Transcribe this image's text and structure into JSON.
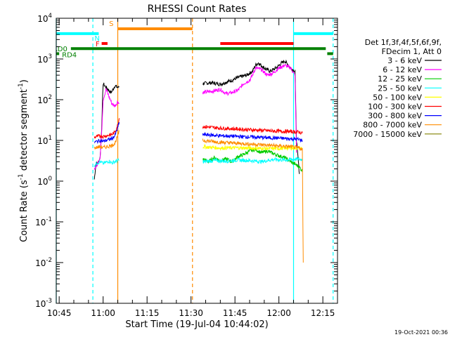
{
  "chart_data": {
    "type": "line",
    "title": "RHESSI Count Rates",
    "xlabel": "Start Time (19-Jul-04 10:44:02)",
    "ylabel_parts": [
      "Count Rate (s",
      "-1",
      " detector segment",
      "-1",
      ")"
    ],
    "yscale": "log",
    "ylim": [
      0.001,
      10000
    ],
    "xlim_minutes_from_1044": [
      0,
      96
    ],
    "x_ticks": [
      {
        "label": "10:45",
        "t": 1
      },
      {
        "label": "11:00",
        "t": 16
      },
      {
        "label": "11:15",
        "t": 31
      },
      {
        "label": "11:30",
        "t": 46
      },
      {
        "label": "11:45",
        "t": 61
      },
      {
        "label": "12:00",
        "t": 76
      },
      {
        "label": "12:15",
        "t": 91
      }
    ],
    "y_ticks": [
      {
        "mant": "10",
        "exp": "-3",
        "v": 0.001
      },
      {
        "mant": "10",
        "exp": "-2",
        "v": 0.01
      },
      {
        "mant": "10",
        "exp": "-1",
        "v": 0.1
      },
      {
        "mant": "10",
        "exp": "0",
        "v": 1
      },
      {
        "mant": "10",
        "exp": "1",
        "v": 10
      },
      {
        "mant": "10",
        "exp": "2",
        "v": 100
      },
      {
        "mant": "10",
        "exp": "3",
        "v": 1000
      },
      {
        "mant": "10",
        "exp": "4",
        "v": 10000
      }
    ],
    "legend_header": [
      "Det 1f,3f,4f,5f,6f,9f,",
      "FDecim 1, Att 0"
    ],
    "series": [
      {
        "name": "3 - 6 keV",
        "color": "#000000",
        "segments": [
          {
            "x": [
              13,
              13.5,
              14.5,
              15,
              15.5,
              16,
              17,
              18,
              18.5,
              19,
              20,
              21,
              21.5
            ],
            "y": [
              1.1,
              2.5,
              3,
              4,
              20,
              250,
              200,
              170,
              150,
              160,
              220,
              200,
              210
            ]
          },
          {
            "x": [
              50,
              53,
              56,
              58,
              60,
              62,
              65,
              67,
              68,
              69,
              71,
              73,
              75,
              77,
              78,
              80,
              81.5,
              82,
              83
            ],
            "y": [
              250,
              260,
              240,
              270,
              300,
              350,
              400,
              500,
              700,
              800,
              600,
              500,
              600,
              800,
              900,
              600,
              500,
              10,
              1.5
            ]
          }
        ]
      },
      {
        "name": "6 - 12 keV",
        "color": "#ff00ff",
        "segments": [
          {
            "x": [
              13,
              14,
              15,
              15.5,
              16,
              17,
              18,
              19,
              20,
              21,
              21.5
            ],
            "y": [
              2,
              2.5,
              4,
              15,
              100,
              180,
              120,
              80,
              70,
              90,
              80
            ]
          },
          {
            "x": [
              50,
              53,
              56,
              58,
              60,
              62,
              64,
              66,
              67,
              68,
              70,
              72,
              74,
              76,
              78,
              80,
              81.5,
              82
            ],
            "y": [
              150,
              160,
              180,
              140,
              150,
              170,
              250,
              300,
              400,
              600,
              550,
              400,
              450,
              600,
              700,
              600,
              400,
              5
            ]
          }
        ]
      },
      {
        "name": "12 - 25 keV",
        "color": "#00cc00",
        "segments": [
          {
            "x": [
              50,
              52,
              54,
              56,
              58,
              60,
              62,
              64,
              66,
              68,
              70,
              72,
              74,
              76,
              78,
              80,
              82,
              83,
              84
            ],
            "y": [
              3.5,
              3,
              3.8,
              3.2,
              3.5,
              3,
              4,
              4.5,
              5.5,
              6,
              5,
              5.5,
              4.8,
              4.2,
              3.8,
              3,
              2.5,
              2.2,
              1.8
            ]
          }
        ]
      },
      {
        "name": "25 - 50 keV",
        "color": "#00ffff",
        "segments": [
          {
            "x": [
              13,
              14,
              15,
              16,
              17,
              18,
              19,
              20,
              21,
              21.5
            ],
            "y": [
              2.5,
              2.8,
              3,
              2.7,
              2.9,
              3.1,
              2.8,
              3,
              3.2,
              3.3
            ]
          },
          {
            "x": [
              50,
              54,
              58,
              62,
              66,
              70,
              74,
              78,
              82,
              84
            ],
            "y": [
              3,
              3.2,
              3.1,
              3.3,
              3.2,
              3,
              3.4,
              3.3,
              3.5,
              3.4
            ]
          }
        ]
      },
      {
        "name": "50 - 100 keV",
        "color": "#ffff00",
        "segments": [
          {
            "x": [
              50,
              56,
              62,
              68,
              74,
              80,
              84
            ],
            "y": [
              7,
              6.5,
              6.6,
              6.4,
              6.3,
              6.5,
              6.4
            ]
          }
        ]
      },
      {
        "name": "100 - 300 keV",
        "color": "#ff0000",
        "segments": [
          {
            "x": [
              13,
              14,
              15,
              16,
              17,
              18,
              19,
              20,
              21,
              21.5
            ],
            "y": [
              12,
              12.5,
              13,
              12.5,
              13,
              13.5,
              14,
              16,
              24,
              35
            ]
          },
          {
            "x": [
              50,
              56,
              62,
              68,
              74,
              80,
              83,
              84
            ],
            "y": [
              22,
              20,
              19,
              18,
              17,
              16.5,
              16,
              15
            ]
          }
        ]
      },
      {
        "name": "300 - 800 keV",
        "color": "#0000ff",
        "segments": [
          {
            "x": [
              13,
              14,
              15,
              16,
              17,
              18,
              19,
              20,
              21,
              21.5
            ],
            "y": [
              9,
              9.5,
              10,
              9.5,
              10,
              10.5,
              11,
              13,
              20,
              28
            ]
          },
          {
            "x": [
              50,
              56,
              62,
              68,
              74,
              80,
              83,
              84
            ],
            "y": [
              14,
              13,
              12.5,
              12,
              11.5,
              11,
              10.5,
              10
            ]
          }
        ]
      },
      {
        "name": "800 - 7000 keV",
        "color": "#ff8c00",
        "segments": [
          {
            "x": [
              13,
              14,
              15,
              16,
              17,
              18,
              19,
              20,
              21,
              21.5
            ],
            "y": [
              6.5,
              6.8,
              7,
              6.7,
              6.9,
              7.2,
              7.5,
              8.5,
              13,
              17
            ]
          },
          {
            "x": [
              50,
              56,
              62,
              68,
              74,
              80,
              83,
              84,
              84.3
            ],
            "y": [
              10,
              9,
              8.5,
              8,
              7.5,
              7,
              6.5,
              6,
              0.01
            ]
          }
        ]
      },
      {
        "name": "7000 - 15000 keV",
        "color": "#808000",
        "segments": []
      }
    ],
    "flags": [
      {
        "label": "",
        "color": "#00ffff",
        "y": 4200,
        "x0": 0,
        "x1": 14.5
      },
      {
        "label": "N",
        "color": "#00ffff",
        "y": 4200,
        "x0": 0,
        "x1": 0
      },
      {
        "label": "F",
        "color": "#ff0000",
        "y": 2400,
        "x0": 15.5,
        "x1": 17.5
      },
      {
        "label": "S",
        "color": "#ff8c00",
        "y": 5500,
        "x0": 21,
        "x1": 46.5
      },
      {
        "label": "",
        "color": "#ff0000",
        "y": 2400,
        "x0": 56,
        "x1": 81
      },
      {
        "label": "",
        "color": "#00ffff",
        "y": 4200,
        "x0": 81,
        "x1": 94.5
      },
      {
        "label": "RD0",
        "color": "#008000",
        "y": 1800,
        "x0": 5,
        "x1": 92
      },
      {
        "label": "RD4",
        "color": "#008000",
        "y": 1350,
        "x0": -2.5,
        "x1": 1
      },
      {
        "label": "",
        "color": "#008000",
        "y": 1350,
        "x0": 92.5,
        "x1": 94.5
      }
    ],
    "markers": [
      {
        "color": "#00ffff",
        "t": 0,
        "dash": false
      },
      {
        "color": "#00ffff",
        "t": 12.5,
        "dash": true
      },
      {
        "color": "#ff8c00",
        "t": 21,
        "dash": false
      },
      {
        "color": "#ff8c00",
        "t": 46.5,
        "dash": true
      },
      {
        "color": "#00ffff",
        "t": 81,
        "dash": false
      },
      {
        "color": "#00ffff",
        "t": 94.5,
        "dash": true
      }
    ]
  },
  "footer_date": "19-Oct-2021 00:36"
}
